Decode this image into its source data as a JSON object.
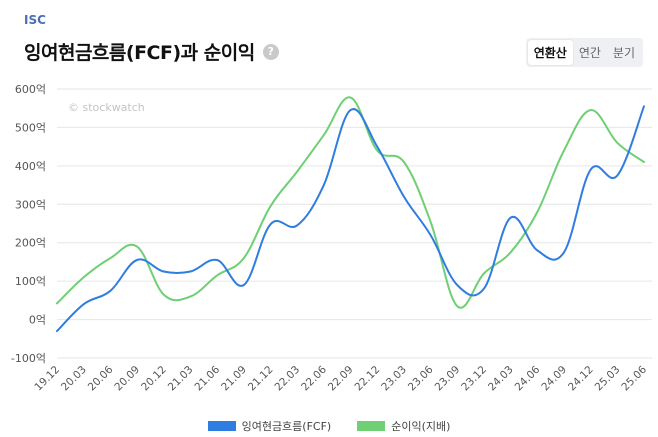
{
  "header": {
    "ticker": "ISC",
    "title": "잉여현금흐름(FCF)과 순이익",
    "help_glyph": "?"
  },
  "period_toggle": {
    "options": [
      "연환산",
      "연간",
      "분기"
    ],
    "selected": "연환산"
  },
  "watermark": "© stockwatch",
  "chart_data": {
    "type": "line",
    "categories": [
      "19.12",
      "20.03",
      "20.06",
      "20.09",
      "20.12",
      "21.03",
      "21.06",
      "21.09",
      "21.12",
      "22.03",
      "22.06",
      "22.09",
      "22.12",
      "23.03",
      "23.06",
      "23.09",
      "23.12",
      "24.03",
      "24.06",
      "24.09",
      "24.12",
      "25.03",
      "25.06"
    ],
    "series": [
      {
        "name": "잉여현금흐름(FCF)",
        "color": "#2f7de1",
        "values": [
          -30,
          40,
          75,
          155,
          125,
          125,
          155,
          90,
          248,
          245,
          350,
          545,
          450,
          320,
          220,
          90,
          80,
          265,
          180,
          175,
          390,
          375,
          555
        ]
      },
      {
        "name": "순이익(지배)",
        "color": "#6fcf74",
        "values": [
          42,
          110,
          160,
          190,
          65,
          60,
          115,
          160,
          295,
          385,
          480,
          578,
          440,
          410,
          255,
          35,
          120,
          175,
          280,
          440,
          545,
          460,
          410
        ]
      }
    ],
    "y_ticks": [
      "600억",
      "500억",
      "400억",
      "300억",
      "200억",
      "100억",
      "0억",
      "-100억"
    ],
    "ylim": [
      -100,
      600
    ],
    "legend": [
      {
        "label": "잉여현금흐름(FCF)",
        "color": "#2f7de1"
      },
      {
        "label": "순이익(지배)",
        "color": "#6fcf74"
      }
    ]
  }
}
